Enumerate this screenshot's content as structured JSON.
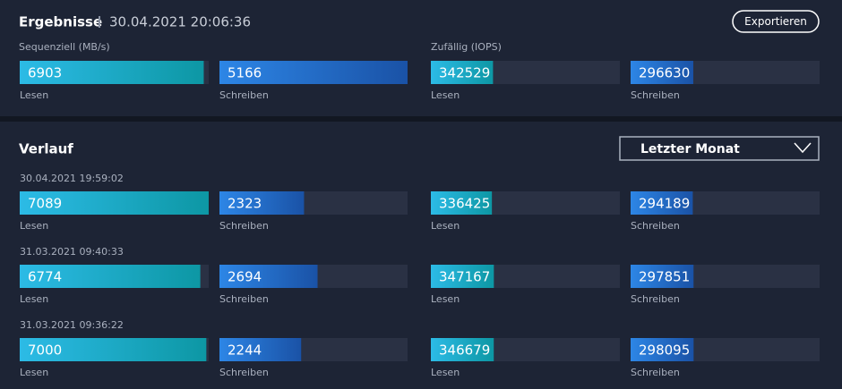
{
  "header": {
    "title": "Ergebnisse",
    "timestamp": "30.04.2021 20:06:36",
    "export_button": "Exportieren"
  },
  "result": {
    "sequential_label": "Sequenziell (MB/s)",
    "random_label": "Zufällig (IOPS)",
    "bars": [
      {
        "value": 6903,
        "label": "Lesen"
      },
      {
        "value": 5166,
        "label": "Schreiben"
      },
      {
        "value": 342529,
        "label": "Lesen"
      },
      {
        "value": 296630,
        "label": "Schreiben"
      }
    ]
  },
  "history": {
    "title": "Verlauf",
    "filter": "Letzter Monat",
    "entries": [
      {
        "timestamp": "30.04.2021 19:59:02",
        "bars": [
          {
            "value": 7089,
            "label": "Lesen"
          },
          {
            "value": 2323,
            "label": "Schreiben"
          },
          {
            "value": 336425,
            "label": "Lesen"
          },
          {
            "value": 294189,
            "label": "Schreiben"
          }
        ]
      },
      {
        "timestamp": "31.03.2021 09:40:33",
        "bars": [
          {
            "value": 6774,
            "label": "Lesen"
          },
          {
            "value": 2694,
            "label": "Schreiben"
          },
          {
            "value": 347167,
            "label": "Lesen"
          },
          {
            "value": 297851,
            "label": "Schreiben"
          }
        ]
      },
      {
        "timestamp": "31.03.2021 09:36:22",
        "bars": [
          {
            "value": 7000,
            "label": "Lesen"
          },
          {
            "value": 2244,
            "label": "Schreiben"
          },
          {
            "value": 346679,
            "label": "Lesen"
          },
          {
            "value": 298095,
            "label": "Schreiben"
          }
        ]
      }
    ]
  }
}
